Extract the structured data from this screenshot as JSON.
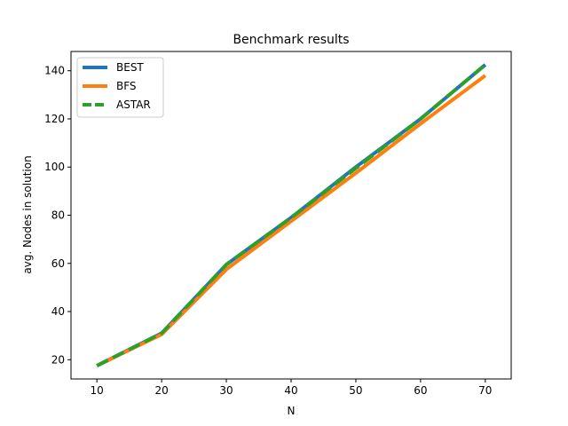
{
  "chart_data": {
    "type": "line",
    "title": "Benchmark results",
    "xlabel": "N",
    "ylabel": "avg. Nodes in solution",
    "x": [
      10,
      20,
      30,
      40,
      50,
      60,
      70
    ],
    "xlim": [
      6,
      74
    ],
    "ylim": [
      12,
      148
    ],
    "xticks": [
      10,
      20,
      30,
      40,
      50,
      60,
      70
    ],
    "yticks": [
      20,
      40,
      60,
      80,
      100,
      120,
      140
    ],
    "grid": false,
    "legend_position": "top-left",
    "series": [
      {
        "name": "BEST",
        "color": "#1f77b4",
        "style": "solid",
        "values": [
          17.5,
          31,
          59.5,
          79,
          100,
          120,
          142.5
        ]
      },
      {
        "name": "BFS",
        "color": "#ff7f0e",
        "style": "solid",
        "values": [
          17.5,
          30.5,
          57.5,
          77.5,
          97.5,
          118,
          138
        ]
      },
      {
        "name": "ASTAR",
        "color": "#2ca02c",
        "style": "dashed",
        "values": [
          17.5,
          31,
          59.5,
          79,
          99.5,
          120,
          142.5
        ]
      }
    ]
  }
}
